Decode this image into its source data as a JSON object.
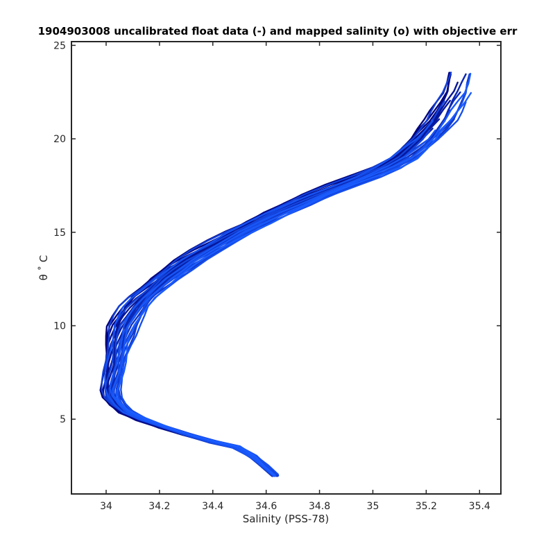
{
  "chart_data": {
    "type": "line",
    "title": "1904903008 uncalibrated float data (-) and mapped salinity (o) with objective err",
    "xlabel": "Salinity (PSS-78)",
    "ylabel": "θ ˚ C",
    "xlim": [
      33.87,
      35.48
    ],
    "ylim": [
      1,
      25.2
    ],
    "x_ticks": [
      34,
      34.2,
      34.4,
      34.6,
      34.8,
      35,
      35.2,
      35.4
    ],
    "x_tick_labels": [
      "34",
      "34.2",
      "34.4",
      "34.6",
      "34.8",
      "35",
      "35.2",
      "35.4"
    ],
    "y_ticks": [
      5,
      10,
      15,
      20,
      25
    ],
    "y_tick_labels": [
      "5",
      "10",
      "15",
      "20",
      "25"
    ],
    "grid": false,
    "legend": "none",
    "color_range": [
      "#00007a",
      "#1a5cff"
    ],
    "base_profile": {
      "theta": [
        2.0,
        2.5,
        3.0,
        3.5,
        3.8,
        4.2,
        4.6,
        5.0,
        5.4,
        5.8,
        6.2,
        6.6,
        7.0,
        7.5,
        8.0,
        8.5,
        9.0,
        9.5,
        10.0,
        10.5,
        11.0,
        11.5,
        12.0,
        12.5,
        13.0,
        13.5,
        14.0,
        14.5,
        15.0,
        15.5,
        16.0,
        16.5,
        17.0,
        17.5,
        18.0,
        18.5,
        19.0,
        19.5,
        20.0,
        20.5,
        21.0,
        21.5,
        22.0,
        22.5,
        23.0,
        23.5
      ],
      "salinity": [
        34.63,
        34.59,
        34.55,
        34.49,
        34.4,
        34.3,
        34.21,
        34.13,
        34.07,
        34.04,
        34.02,
        34.015,
        34.02,
        34.025,
        34.03,
        34.035,
        34.04,
        34.05,
        34.06,
        34.08,
        34.1,
        34.13,
        34.17,
        34.21,
        34.26,
        34.31,
        34.37,
        34.43,
        34.49,
        34.56,
        34.63,
        34.71,
        34.79,
        34.88,
        34.97,
        35.05,
        35.11,
        35.15,
        35.19,
        35.22,
        35.25,
        35.27,
        35.29,
        35.31,
        35.32,
        35.33
      ]
    },
    "profile_offsets": [
      -0.05,
      -0.04,
      -0.035,
      -0.03,
      -0.025,
      -0.02,
      -0.015,
      -0.01,
      -0.005,
      0.0,
      0.005,
      0.01,
      0.015,
      0.02,
      0.025,
      0.03,
      0.035,
      0.04,
      0.045,
      0.05,
      -0.045,
      -0.02,
      0.0,
      0.02,
      0.04,
      0.06,
      -0.03,
      0.01,
      0.03,
      0.05
    ],
    "profile_top_theta": [
      24.2,
      23.9,
      23.4,
      23.6,
      22.8,
      22.3,
      21.5,
      23.0,
      22.0,
      21.0,
      20.5,
      19.5,
      23.5,
      22.6,
      21.8,
      20.2,
      19.8,
      24.0,
      22.9,
      21.2,
      23.7,
      22.4,
      20.8,
      19.2,
      23.2,
      22.1,
      21.4,
      20.6,
      23.8,
      22.7
    ],
    "profile_count": 30
  }
}
